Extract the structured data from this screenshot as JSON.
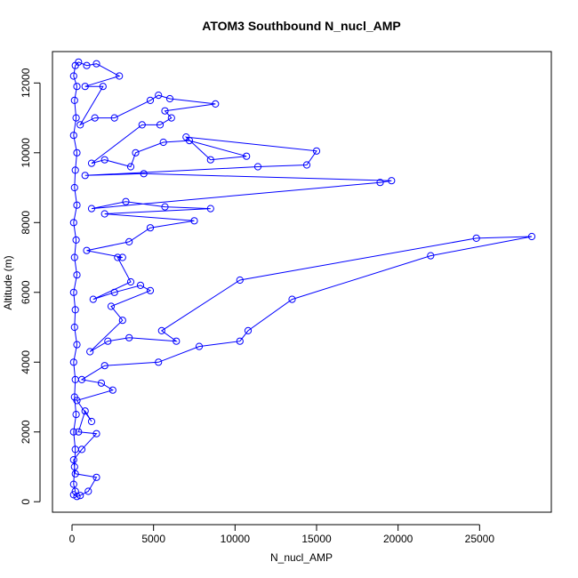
{
  "chart_data": {
    "type": "line",
    "title": "ATOM3 Southbound N_nucl_AMP",
    "xlabel": "N_nucl_AMP",
    "ylabel": "Altitude (m)",
    "xlim": [
      -1200,
      29400
    ],
    "ylim": [
      -300,
      12900
    ],
    "xticks": [
      0,
      5000,
      10000,
      15000,
      20000,
      25000
    ],
    "yticks": [
      0,
      2000,
      4000,
      6000,
      8000,
      10000,
      12000
    ],
    "grid": false,
    "legend": "none",
    "color": "#0000ff",
    "marker": "open-circle",
    "series": [
      {
        "points": [
          [
            100,
            200
          ],
          [
            300,
            150
          ],
          [
            500,
            180
          ],
          [
            1000,
            300
          ],
          [
            1500,
            700
          ],
          [
            200,
            800
          ],
          [
            100,
            1200
          ],
          [
            600,
            1500
          ],
          [
            1500,
            1950
          ],
          [
            400,
            2000
          ],
          [
            800,
            2600
          ],
          [
            1200,
            2300
          ],
          [
            300,
            2900
          ],
          [
            2500,
            3200
          ],
          [
            1800,
            3400
          ],
          [
            600,
            3500
          ],
          [
            2000,
            3900
          ],
          [
            5300,
            4000
          ],
          [
            7800,
            4450
          ],
          [
            10300,
            4600
          ],
          [
            10800,
            4900
          ],
          [
            13500,
            5800
          ],
          [
            22000,
            7050
          ],
          [
            28200,
            7600
          ],
          [
            24800,
            7550
          ],
          [
            10300,
            6350
          ],
          [
            5500,
            4900
          ],
          [
            6400,
            4600
          ],
          [
            3500,
            4700
          ],
          [
            2200,
            4600
          ],
          [
            1100,
            4300
          ],
          [
            3100,
            5200
          ],
          [
            2400,
            5600
          ],
          [
            4800,
            6050
          ],
          [
            4200,
            6200
          ],
          [
            2600,
            6000
          ],
          [
            1300,
            5800
          ],
          [
            3600,
            6300
          ],
          [
            2800,
            7000
          ],
          [
            3100,
            7000
          ],
          [
            900,
            7200
          ],
          [
            3500,
            7450
          ],
          [
            4800,
            7850
          ],
          [
            7500,
            8050
          ],
          [
            2000,
            8250
          ],
          [
            8500,
            8400
          ],
          [
            5700,
            8450
          ],
          [
            3300,
            8600
          ],
          [
            1200,
            8400
          ],
          [
            18900,
            9150
          ],
          [
            19600,
            9200
          ],
          [
            4400,
            9400
          ],
          [
            800,
            9350
          ],
          [
            11400,
            9600
          ],
          [
            14400,
            9650
          ],
          [
            15000,
            10050
          ],
          [
            7000,
            10450
          ],
          [
            8500,
            9800
          ],
          [
            10700,
            9900
          ],
          [
            7200,
            10350
          ],
          [
            5600,
            10300
          ],
          [
            3900,
            10000
          ],
          [
            3600,
            9600
          ],
          [
            2000,
            9800
          ],
          [
            1200,
            9700
          ],
          [
            4300,
            10800
          ],
          [
            5400,
            10800
          ],
          [
            6100,
            11000
          ],
          [
            5700,
            11200
          ],
          [
            8800,
            11400
          ],
          [
            6000,
            11550
          ],
          [
            5300,
            11650
          ],
          [
            4800,
            11500
          ],
          [
            2600,
            11000
          ],
          [
            1400,
            11000
          ],
          [
            500,
            10800
          ],
          [
            1900,
            11900
          ],
          [
            800,
            11900
          ],
          [
            2900,
            12200
          ],
          [
            1500,
            12550
          ],
          [
            900,
            12500
          ],
          [
            400,
            12600
          ],
          [
            200,
            12500
          ],
          [
            100,
            12200
          ],
          [
            300,
            11900
          ],
          [
            150,
            11500
          ],
          [
            250,
            11000
          ],
          [
            100,
            10500
          ],
          [
            300,
            10000
          ],
          [
            200,
            9500
          ],
          [
            150,
            9000
          ],
          [
            300,
            8500
          ],
          [
            100,
            8000
          ],
          [
            250,
            7500
          ],
          [
            150,
            7000
          ],
          [
            300,
            6500
          ],
          [
            100,
            6000
          ],
          [
            200,
            5500
          ],
          [
            150,
            5000
          ],
          [
            300,
            4500
          ],
          [
            100,
            4000
          ],
          [
            200,
            3500
          ],
          [
            150,
            3000
          ],
          [
            250,
            2500
          ],
          [
            100,
            2000
          ],
          [
            200,
            1500
          ],
          [
            150,
            1000
          ],
          [
            100,
            500
          ],
          [
            200,
            300
          ]
        ]
      }
    ]
  }
}
